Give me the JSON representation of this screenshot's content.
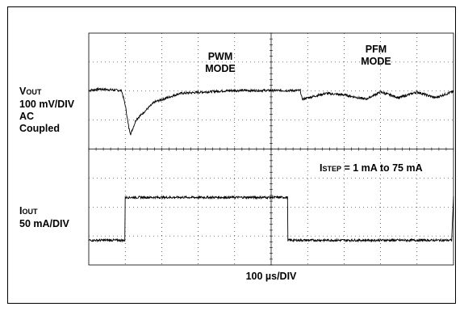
{
  "chart_data": {
    "type": "line",
    "grid": {
      "x_divisions": 10,
      "y_divisions": 8,
      "dotted": true
    },
    "xlabel": "100 µs/DIV",
    "x_per_div_us": 100,
    "channels": [
      {
        "name_main": "V",
        "name_sub": "OUT",
        "scale": "100 mV/DIV",
        "coupling_line1": "AC",
        "coupling_line2": "Coupled",
        "mv_per_div": 100,
        "points_t_us_v_mV": [
          [
            0,
            0
          ],
          [
            30,
            5
          ],
          [
            90,
            0
          ],
          [
            100,
            -50
          ],
          [
            110,
            -130
          ],
          [
            115,
            -150
          ],
          [
            130,
            -100
          ],
          [
            180,
            -40
          ],
          [
            250,
            -10
          ],
          [
            360,
            -2
          ],
          [
            400,
            0
          ],
          [
            580,
            0
          ],
          [
            585,
            -30
          ],
          [
            650,
            -10
          ],
          [
            700,
            -15
          ],
          [
            760,
            -30
          ],
          [
            800,
            -5
          ],
          [
            850,
            -25
          ],
          [
            900,
            -5
          ],
          [
            950,
            -25
          ],
          [
            1000,
            -3
          ]
        ],
        "ac_baseline_div": 1.0
      },
      {
        "name_main": "I",
        "name_sub": "OUT",
        "scale": "50 mA/DIV",
        "ma_per_div": 50,
        "step_label_main": "I",
        "step_label_sub": "STEP",
        "step_label_rest": " = 1 mA to 75 mA",
        "points_t_us_i_mA": [
          [
            0,
            1
          ],
          [
            99,
            1
          ],
          [
            100,
            75
          ],
          [
            545,
            75
          ],
          [
            546,
            1
          ],
          [
            995,
            1
          ],
          [
            1000,
            75
          ]
        ]
      }
    ],
    "annotations": [
      {
        "line1": "PWM",
        "line2": "MODE"
      },
      {
        "line1": "PFM",
        "line2": "MODE"
      }
    ]
  }
}
